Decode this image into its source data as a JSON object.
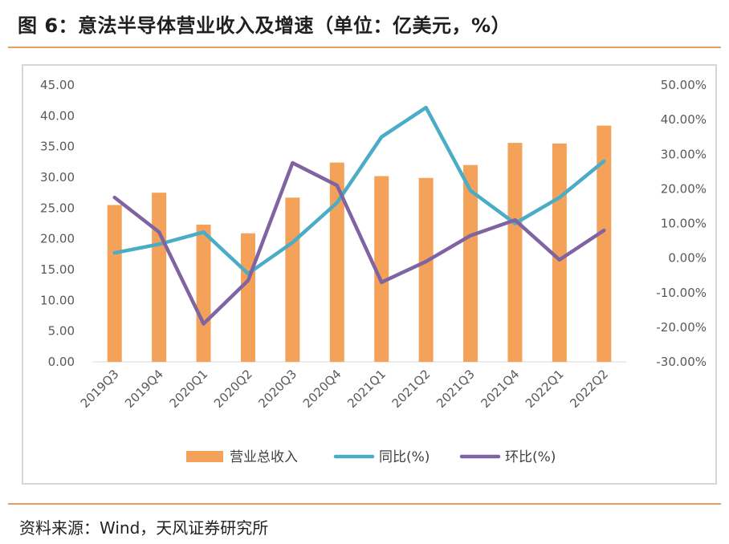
{
  "figure": {
    "title": "图 6：意法半导体营业收入及增速（单位：亿美元，%）",
    "source": "资料来源：Wind，天风证券研究所"
  },
  "chart_data": {
    "type": "bar+line",
    "categories": [
      "2019Q3",
      "2019Q4",
      "2020Q1",
      "2020Q2",
      "2020Q3",
      "2020Q4",
      "2021Q1",
      "2021Q2",
      "2021Q3",
      "2021Q4",
      "2022Q1",
      "2022Q2"
    ],
    "left_axis": {
      "min": 0,
      "max": 45,
      "step": 5,
      "tick_labels": [
        "0.00",
        "5.00",
        "10.00",
        "15.00",
        "20.00",
        "25.00",
        "30.00",
        "35.00",
        "40.00",
        "45.00"
      ]
    },
    "right_axis": {
      "min": -30,
      "max": 50,
      "step": 10,
      "tick_labels": [
        "-30.00%",
        "-20.00%",
        "-10.00%",
        "0.00%",
        "10.00%",
        "20.00%",
        "30.00%",
        "40.00%",
        "50.00%"
      ]
    },
    "series": [
      {
        "name": "营业总收入",
        "kind": "bar",
        "axis": "left",
        "color": "#f4a259",
        "values": [
          25.5,
          27.5,
          22.3,
          20.9,
          26.7,
          32.4,
          30.2,
          29.9,
          32.0,
          35.6,
          35.5,
          38.4
        ]
      },
      {
        "name": "同比(%)",
        "kind": "line",
        "axis": "right",
        "color": "#4bacc6",
        "values": [
          1.5,
          4.0,
          7.5,
          -4.5,
          4.5,
          16.0,
          35.0,
          43.5,
          19.5,
          10.0,
          17.5,
          28.0
        ]
      },
      {
        "name": "环比(%)",
        "kind": "line",
        "axis": "right",
        "color": "#8064a2",
        "values": [
          17.5,
          7.5,
          -19.0,
          -6.5,
          27.5,
          21.0,
          -7.0,
          -1.0,
          6.5,
          11.0,
          -0.5,
          8.0
        ]
      }
    ],
    "legend_position": "bottom",
    "grid": false
  }
}
